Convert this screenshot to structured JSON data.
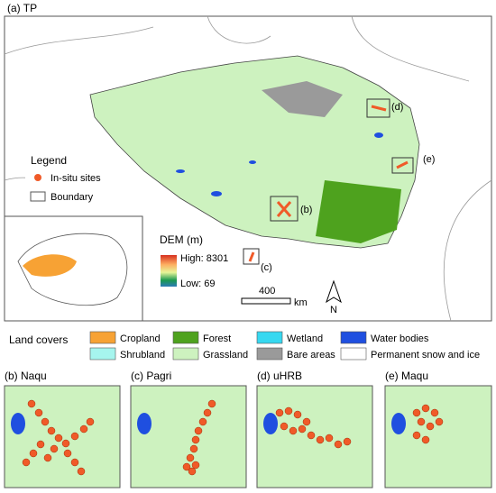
{
  "main_map": {
    "title": "(a) TP",
    "legend": {
      "title": "Legend",
      "items": [
        "In-situ sites",
        "Boundary"
      ]
    },
    "site_labels": [
      "(b)",
      "(c)",
      "(d)",
      "(e)"
    ],
    "dem": {
      "title": "DEM (m)",
      "high": "High: 8301",
      "low": "Low: 69"
    },
    "scale": {
      "distance": "400",
      "unit": "km"
    },
    "north": "N"
  },
  "land_covers": {
    "title": "Land covers",
    "items": [
      {
        "label": "Cropland",
        "color": "#f7a234"
      },
      {
        "label": "Forest",
        "color": "#4ea21e"
      },
      {
        "label": "Wetland",
        "color": "#36d8f0"
      },
      {
        "label": "Water bodies",
        "color": "#1f4fe0"
      },
      {
        "label": "Shrubland",
        "color": "#a6f5ee"
      },
      {
        "label": "Grassland",
        "color": "#cdf2bf"
      },
      {
        "label": "Bare areas",
        "color": "#9a9a9a"
      },
      {
        "label": "Permanent snow and ice",
        "color": "#ffffff"
      }
    ]
  },
  "panels": [
    "(b) Naqu",
    "(c) Pagri",
    "(d) uHRB",
    "(e) Maqu"
  ]
}
